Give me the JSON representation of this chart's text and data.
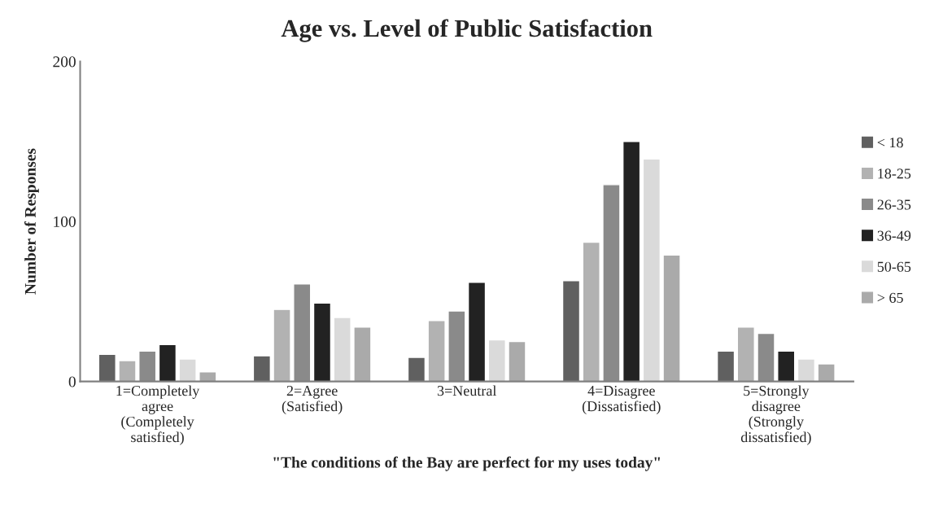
{
  "chart_data": {
    "type": "bar",
    "title": "Age vs. Level of Public Satisfaction",
    "xlabel": "\"The conditions of the Bay are perfect for my uses today\"",
    "ylabel": "Number of Responses",
    "categories": [
      "1=Completely\nagree\n(Completely\nsatisfied)",
      "2=Agree\n(Satisfied)",
      "3=Neutral",
      "4=Disagree\n(Dissatisfied)",
      "5=Strongly\ndisagree\n(Strongly\ndissatisfied)"
    ],
    "series": [
      {
        "name": "< 18",
        "color": "#606060",
        "values": [
          17,
          16,
          15,
          63,
          19
        ]
      },
      {
        "name": "18-25",
        "color": "#b2b2b2",
        "values": [
          13,
          45,
          38,
          87,
          34
        ]
      },
      {
        "name": "26-35",
        "color": "#8a8a8a",
        "values": [
          19,
          61,
          44,
          123,
          30
        ]
      },
      {
        "name": "36-49",
        "color": "#222222",
        "values": [
          23,
          49,
          62,
          150,
          19
        ]
      },
      {
        "name": "50-65",
        "color": "#dadada",
        "values": [
          14,
          40,
          26,
          139,
          14
        ]
      },
      {
        "name": "> 65",
        "color": "#aaaaaa",
        "values": [
          6,
          34,
          25,
          79,
          11
        ]
      }
    ],
    "ylim": [
      0,
      200
    ],
    "yticks": [
      0,
      100,
      200
    ],
    "grid": false,
    "legend": "right"
  }
}
